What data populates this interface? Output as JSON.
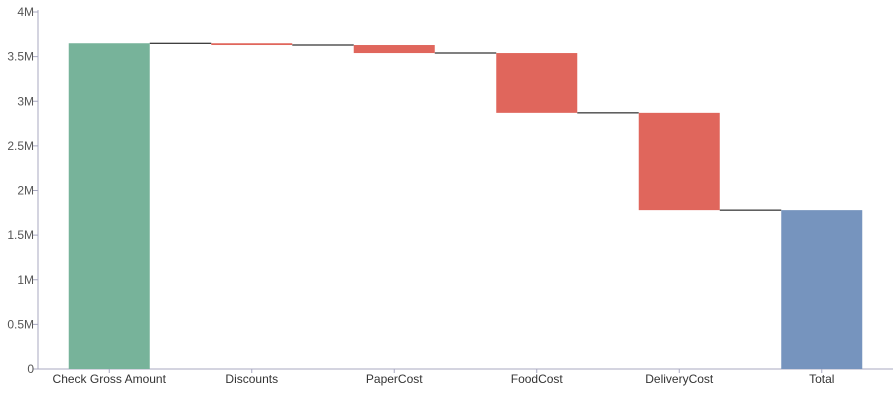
{
  "chart_data": {
    "type": "bar",
    "subtype": "waterfall",
    "title": "",
    "xlabel": "",
    "ylabel": "",
    "ylim": [
      0,
      4000000
    ],
    "y_ticks": [
      {
        "value": 0,
        "label": "0"
      },
      {
        "value": 500000,
        "label": "0.5M"
      },
      {
        "value": 1000000,
        "label": "1M"
      },
      {
        "value": 1500000,
        "label": "1.5M"
      },
      {
        "value": 2000000,
        "label": "2M"
      },
      {
        "value": 2500000,
        "label": "2.5M"
      },
      {
        "value": 3000000,
        "label": "3M"
      },
      {
        "value": 3500000,
        "label": "3.5M"
      },
      {
        "value": 4000000,
        "label": "4M"
      }
    ],
    "categories": [
      "Check Gross Amount",
      "Discounts",
      "PaperCost",
      "FoodCost",
      "DeliveryCost",
      "Total"
    ],
    "bars": [
      {
        "category": "Check Gross Amount",
        "kind": "total",
        "start": 0,
        "end": 3650000
      },
      {
        "category": "Discounts",
        "kind": "decrease",
        "start": 3650000,
        "end": 3630000
      },
      {
        "category": "PaperCost",
        "kind": "decrease",
        "start": 3630000,
        "end": 3540000
      },
      {
        "category": "FoodCost",
        "kind": "decrease",
        "start": 3540000,
        "end": 2870000
      },
      {
        "category": "DeliveryCost",
        "kind": "decrease",
        "start": 2870000,
        "end": 1780000
      },
      {
        "category": "Total",
        "kind": "total",
        "start": 0,
        "end": 1780000
      }
    ],
    "colors": {
      "first_total": "#77b39a",
      "decrease": "#e0665c",
      "final_total": "#7694be",
      "connector": "#000000",
      "axis": "#a8a8c0"
    },
    "grid": false,
    "legend": "none"
  }
}
